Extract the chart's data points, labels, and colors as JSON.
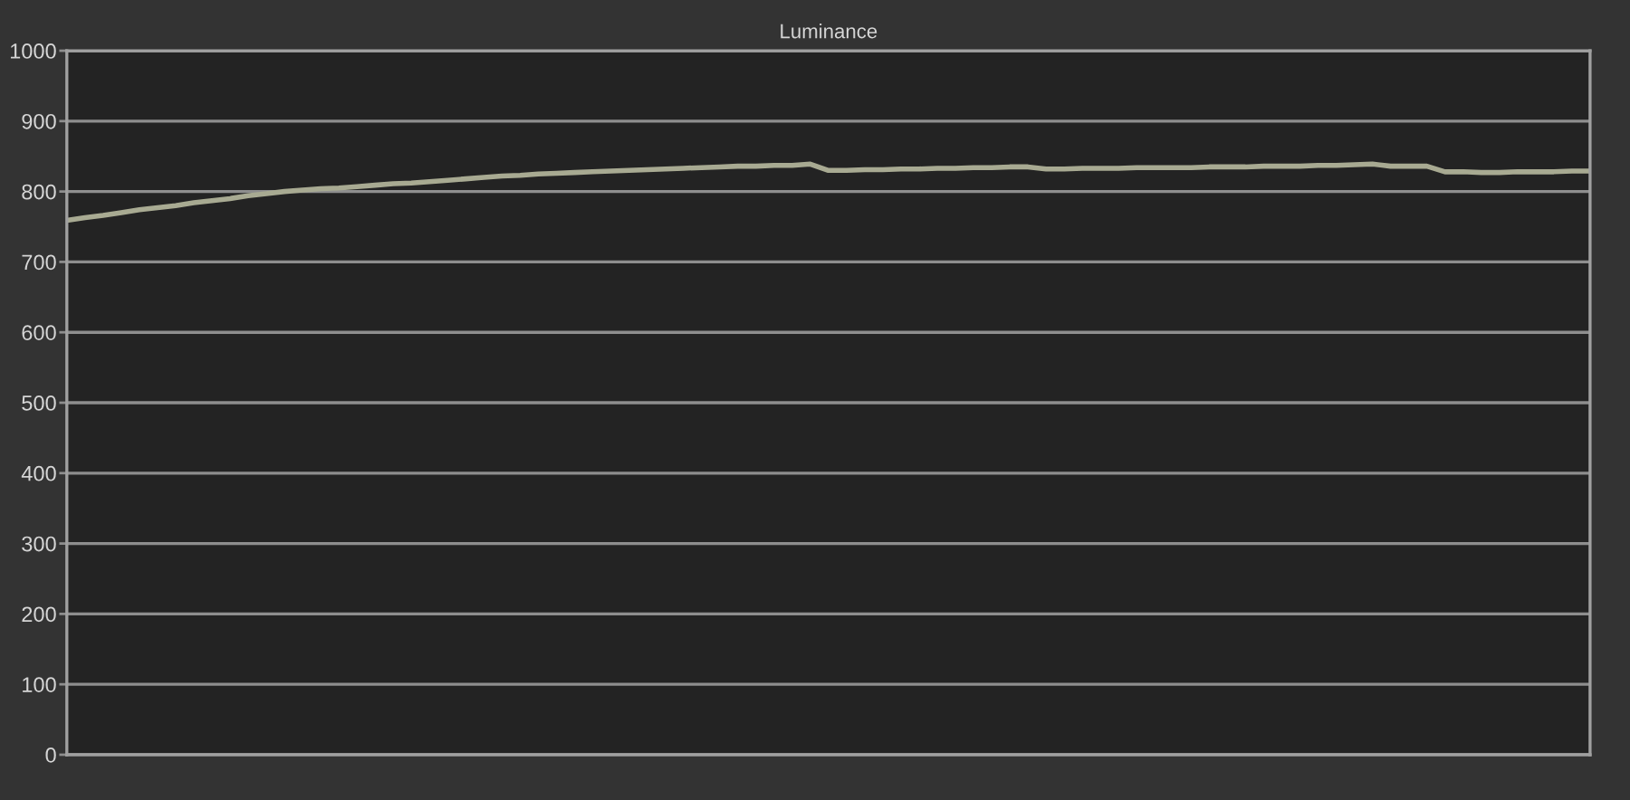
{
  "chart_data": {
    "type": "line",
    "title": "Luminance",
    "categories": [
      null,
      null,
      null,
      null,
      null,
      null,
      null,
      null,
      null,
      null,
      null,
      null,
      null,
      null,
      null,
      null,
      null,
      null,
      null,
      null,
      null,
      null,
      null,
      null,
      null,
      null,
      null,
      null,
      null,
      null,
      null,
      null,
      null,
      null,
      null,
      null,
      null,
      null,
      null,
      null,
      null,
      null,
      null,
      null,
      null,
      null,
      null,
      null,
      null,
      null,
      null,
      null,
      null,
      null,
      null,
      null,
      null,
      null,
      null,
      null,
      null,
      null,
      null,
      null,
      null,
      null,
      null,
      null,
      null,
      null,
      null,
      null,
      null,
      null,
      null,
      null,
      null,
      null,
      null,
      null,
      null,
      null,
      null,
      null,
      null
    ],
    "values": [
      759,
      763,
      766,
      770,
      774,
      777,
      780,
      784,
      787,
      790,
      794,
      797,
      800,
      802,
      804,
      805,
      807,
      809,
      811,
      812,
      814,
      816,
      818,
      820,
      822,
      823,
      825,
      826,
      827,
      828,
      829,
      830,
      831,
      832,
      833,
      834,
      835,
      836,
      836,
      837,
      837,
      839,
      830,
      830,
      831,
      831,
      832,
      832,
      833,
      833,
      834,
      834,
      835,
      835,
      832,
      832,
      833,
      833,
      833,
      834,
      834,
      834,
      834,
      835,
      835,
      835,
      836,
      836,
      836,
      837,
      837,
      838,
      839,
      836,
      836,
      836,
      828,
      828,
      827,
      827,
      828,
      828,
      828,
      829,
      829
    ],
    "color": "#a8aa92",
    "ylim": [
      0,
      1000
    ],
    "yticks": [
      0,
      100,
      200,
      300,
      400,
      500,
      600,
      700,
      800,
      900,
      1000
    ],
    "grid": "y",
    "tick_labels": "y"
  }
}
